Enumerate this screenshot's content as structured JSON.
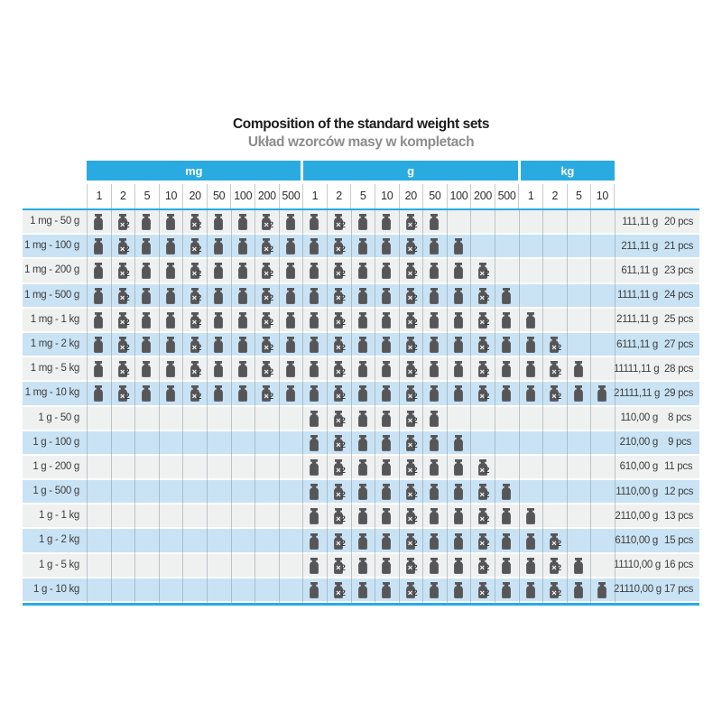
{
  "title": "Composition of the standard weight sets",
  "subtitle": "Układ wzorców masy w kompletach",
  "colors": {
    "header_blue": "#29abe2",
    "row_blue": "#c9e3f5",
    "row_gray": "#eff0f0",
    "icon_gray": "#565659",
    "grid_line": "#7d8c96",
    "text_dark": "#3c3c3c"
  },
  "unit_groups": [
    {
      "label": "mg",
      "denominations": [
        "1",
        "2",
        "5",
        "10",
        "20",
        "50",
        "100",
        "200",
        "500"
      ]
    },
    {
      "label": "g",
      "denominations": [
        "1",
        "2",
        "5",
        "10",
        "20",
        "50",
        "100",
        "200",
        "500"
      ]
    },
    {
      "label": "kg",
      "denominations": [
        "1",
        "2",
        "5",
        "10"
      ]
    }
  ],
  "badge": {
    "mark": "×",
    "count": "2"
  },
  "rows": [
    {
      "label": "1 mg - 50 g",
      "cells": [
        1,
        2,
        1,
        1,
        2,
        1,
        1,
        2,
        1,
        1,
        2,
        1,
        1,
        2,
        1,
        0,
        0,
        0,
        0,
        0,
        0,
        0
      ],
      "total": "111,11 g",
      "pcs": "20 pcs"
    },
    {
      "label": "1 mg - 100 g",
      "cells": [
        1,
        2,
        1,
        1,
        2,
        1,
        1,
        2,
        1,
        1,
        2,
        1,
        1,
        2,
        1,
        1,
        0,
        0,
        0,
        0,
        0,
        0
      ],
      "total": "211,11 g",
      "pcs": "21 pcs"
    },
    {
      "label": "1 mg - 200 g",
      "cells": [
        1,
        2,
        1,
        1,
        2,
        1,
        1,
        2,
        1,
        1,
        2,
        1,
        1,
        2,
        1,
        1,
        2,
        0,
        0,
        0,
        0,
        0
      ],
      "total": "611,11 g",
      "pcs": "23 pcs"
    },
    {
      "label": "1 mg - 500 g",
      "cells": [
        1,
        2,
        1,
        1,
        2,
        1,
        1,
        2,
        1,
        1,
        2,
        1,
        1,
        2,
        1,
        1,
        2,
        1,
        0,
        0,
        0,
        0
      ],
      "total": "1111,11 g",
      "pcs": "24 pcs"
    },
    {
      "label": "1 mg - 1 kg",
      "cells": [
        1,
        2,
        1,
        1,
        2,
        1,
        1,
        2,
        1,
        1,
        2,
        1,
        1,
        2,
        1,
        1,
        2,
        1,
        1,
        0,
        0,
        0
      ],
      "total": "2111,11 g",
      "pcs": "25 pcs"
    },
    {
      "label": "1 mg - 2 kg",
      "cells": [
        1,
        2,
        1,
        1,
        2,
        1,
        1,
        2,
        1,
        1,
        2,
        1,
        1,
        2,
        1,
        1,
        2,
        1,
        1,
        2,
        0,
        0
      ],
      "total": "6111,11 g",
      "pcs": "27 pcs"
    },
    {
      "label": "1 mg - 5 kg",
      "cells": [
        1,
        2,
        1,
        1,
        2,
        1,
        1,
        2,
        1,
        1,
        2,
        1,
        1,
        2,
        1,
        1,
        2,
        1,
        1,
        2,
        1,
        0
      ],
      "total": "11111,11 g",
      "pcs": "28 pcs"
    },
    {
      "label": "1 mg - 10 kg",
      "cells": [
        1,
        2,
        1,
        1,
        2,
        1,
        1,
        2,
        1,
        1,
        2,
        1,
        1,
        2,
        1,
        1,
        2,
        1,
        1,
        2,
        1,
        1
      ],
      "total": "21111,11 g",
      "pcs": "29 pcs"
    },
    {
      "label": "1 g - 50 g",
      "cells": [
        0,
        0,
        0,
        0,
        0,
        0,
        0,
        0,
        0,
        1,
        2,
        1,
        1,
        2,
        1,
        0,
        0,
        0,
        0,
        0,
        0,
        0
      ],
      "total": "110,00 g",
      "pcs": "8 pcs"
    },
    {
      "label": "1 g - 100 g",
      "cells": [
        0,
        0,
        0,
        0,
        0,
        0,
        0,
        0,
        0,
        1,
        2,
        1,
        1,
        2,
        1,
        1,
        0,
        0,
        0,
        0,
        0,
        0
      ],
      "total": "210,00 g",
      "pcs": "9 pcs"
    },
    {
      "label": "1 g - 200 g",
      "cells": [
        0,
        0,
        0,
        0,
        0,
        0,
        0,
        0,
        0,
        1,
        2,
        1,
        1,
        2,
        1,
        1,
        2,
        0,
        0,
        0,
        0,
        0
      ],
      "total": "610,00 g",
      "pcs": "11 pcs"
    },
    {
      "label": "1 g - 500 g",
      "cells": [
        0,
        0,
        0,
        0,
        0,
        0,
        0,
        0,
        0,
        1,
        2,
        1,
        1,
        2,
        1,
        1,
        2,
        1,
        0,
        0,
        0,
        0
      ],
      "total": "1110,00 g",
      "pcs": "12 pcs"
    },
    {
      "label": "1 g - 1 kg",
      "cells": [
        0,
        0,
        0,
        0,
        0,
        0,
        0,
        0,
        0,
        1,
        2,
        1,
        1,
        2,
        1,
        1,
        2,
        1,
        1,
        0,
        0,
        0
      ],
      "total": "2110,00 g",
      "pcs": "13 pcs"
    },
    {
      "label": "1 g - 2 kg",
      "cells": [
        0,
        0,
        0,
        0,
        0,
        0,
        0,
        0,
        0,
        1,
        2,
        1,
        1,
        2,
        1,
        1,
        2,
        1,
        1,
        2,
        0,
        0
      ],
      "total": "6110,00 g",
      "pcs": "15 pcs"
    },
    {
      "label": "1 g - 5 kg",
      "cells": [
        0,
        0,
        0,
        0,
        0,
        0,
        0,
        0,
        0,
        1,
        2,
        1,
        1,
        2,
        1,
        1,
        2,
        1,
        1,
        2,
        1,
        0
      ],
      "total": "11110,00 g",
      "pcs": "16 pcs"
    },
    {
      "label": "1 g - 10 kg",
      "cells": [
        0,
        0,
        0,
        0,
        0,
        0,
        0,
        0,
        0,
        1,
        2,
        1,
        1,
        2,
        1,
        1,
        2,
        1,
        1,
        2,
        1,
        1
      ],
      "total": "21110,00 g",
      "pcs": "17 pcs"
    }
  ]
}
